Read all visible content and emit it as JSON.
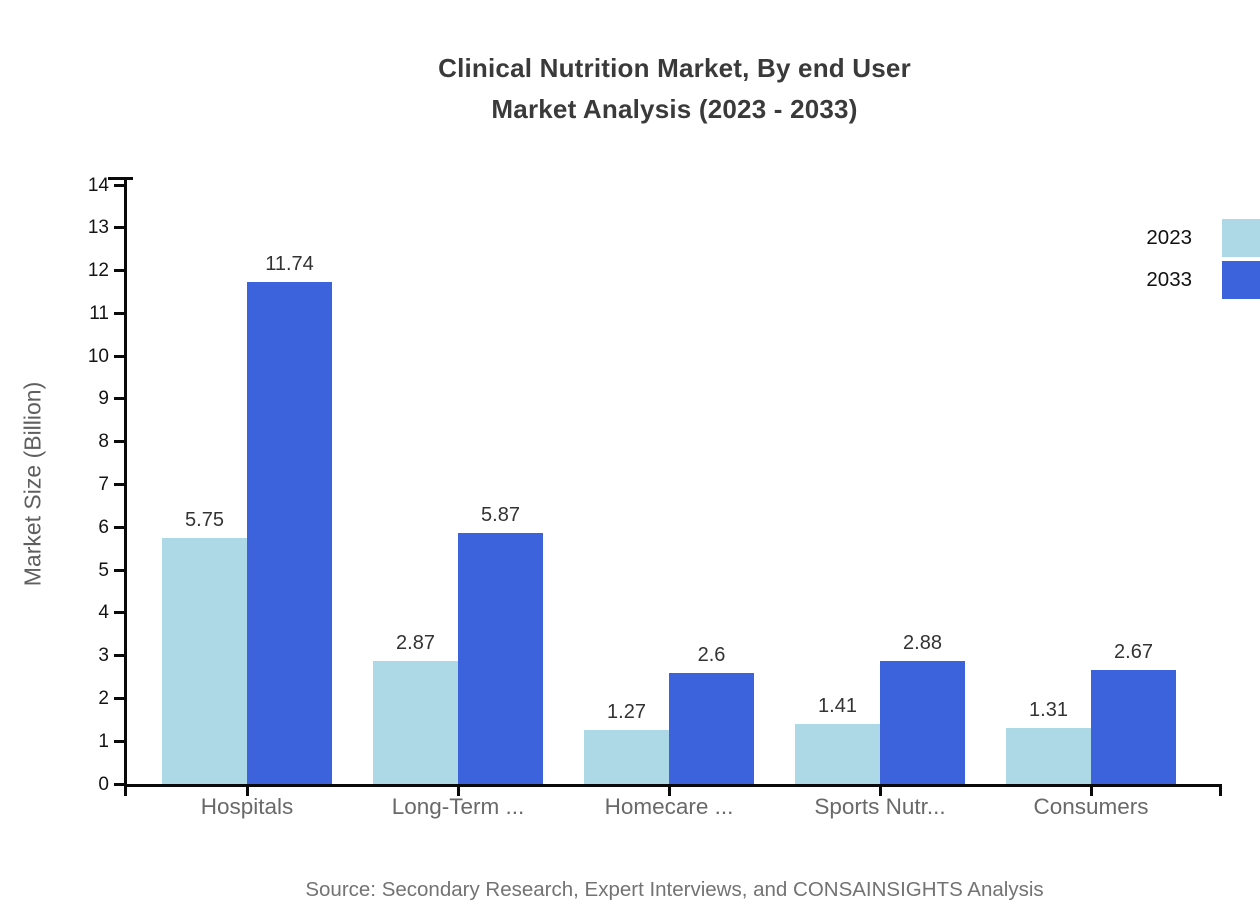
{
  "title": {
    "line1": "Clinical Nutrition Market, By end User",
    "line2": "Market Analysis (2023 - 2033)"
  },
  "y_axis_label": "Market Size (Billion)",
  "source_note": "Source: Secondary Research, Expert Interviews, and CONSAINSIGHTS Analysis",
  "legend": {
    "items": [
      {
        "label": "2023",
        "color": "#ADD8E6"
      },
      {
        "label": "2033",
        "color": "#3D63DC"
      }
    ]
  },
  "chart_data": {
    "type": "bar",
    "title": "Clinical Nutrition Market, By end User Market Analysis (2023 - 2033)",
    "categories": [
      "Hospitals",
      "Long-Term ...",
      "Homecare ...",
      "Sports Nutr...",
      "Consumers"
    ],
    "series": [
      {
        "name": "2023",
        "color": "#ADD8E6",
        "values": [
          5.75,
          2.87,
          1.27,
          1.41,
          1.31
        ]
      },
      {
        "name": "2033",
        "color": "#3D63DC",
        "values": [
          11.74,
          5.87,
          2.6,
          2.88,
          2.67
        ]
      }
    ],
    "xlabel": "",
    "ylabel": "Market Size (Billion)",
    "ylim": [
      0,
      14
    ],
    "y_ticks": [
      0,
      1,
      2,
      3,
      4,
      5,
      6,
      7,
      8,
      9,
      10,
      11,
      12,
      13,
      14
    ],
    "grid": false,
    "legend_position": "right",
    "bar_value_labels": true
  },
  "colors": {
    "background": "#ffffff",
    "axis": "#0a0a0a",
    "title_text": "#3a3a3a",
    "tick_label": "#141414",
    "category_label": "#696969",
    "value_label": "#333333",
    "axis_title_text": "#5f5f5f",
    "source_text": "#737373",
    "series_2023": "#ADD8E6",
    "series_2033": "#3D63DC"
  }
}
